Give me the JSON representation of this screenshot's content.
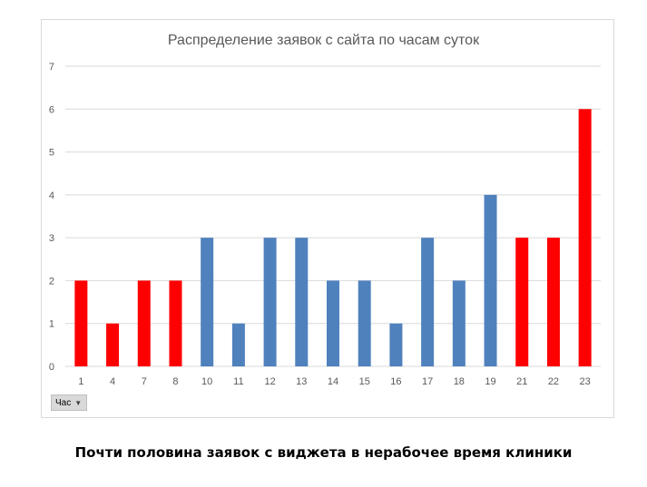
{
  "chart_data": {
    "type": "bar",
    "title": "Распределение заявок с сайта по часам суток",
    "xlabel": "",
    "ylabel": "",
    "ylim": [
      0,
      7
    ],
    "yticks": [
      0,
      1,
      2,
      3,
      4,
      5,
      6,
      7
    ],
    "grid": true,
    "categories": [
      "1",
      "4",
      "7",
      "8",
      "10",
      "11",
      "12",
      "13",
      "14",
      "15",
      "16",
      "17",
      "18",
      "19",
      "21",
      "22",
      "23"
    ],
    "values": [
      2,
      1,
      2,
      2,
      3,
      1,
      3,
      3,
      2,
      2,
      1,
      3,
      2,
      4,
      3,
      3,
      6
    ],
    "bar_colors": [
      "#ff0000",
      "#ff0000",
      "#ff0000",
      "#ff0000",
      "#4f81bd",
      "#4f81bd",
      "#4f81bd",
      "#4f81bd",
      "#4f81bd",
      "#4f81bd",
      "#4f81bd",
      "#4f81bd",
      "#4f81bd",
      "#4f81bd",
      "#ff0000",
      "#ff0000",
      "#ff0000"
    ]
  },
  "filter": {
    "label": "Час",
    "icon": "dropdown-arrow-icon"
  },
  "caption": "Почти половина заявок с виджета в нерабочее время клиники",
  "colors": {
    "non_working_hours": "#ff0000",
    "working_hours": "#4f81bd",
    "gridline": "#d9d9d9",
    "axis_text": "#595959"
  }
}
